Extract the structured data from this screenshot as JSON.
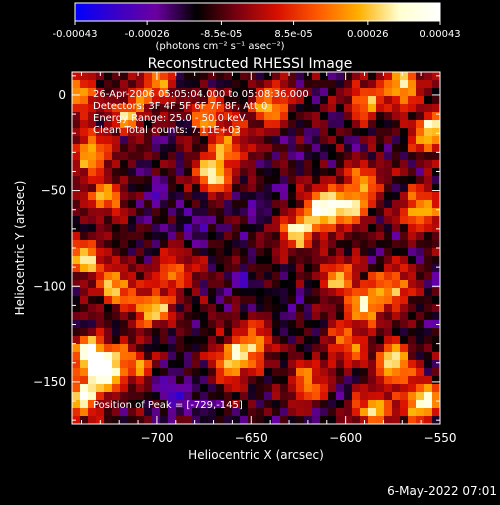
{
  "colorbar": {
    "tick_labels": [
      "-0.00043",
      "-0.00026",
      "-8.5e-05",
      "8.5e-05",
      "0.00026",
      "0.00043"
    ],
    "unit_label": "(photons cm⁻² s⁻¹ asec⁻²)",
    "colors": [
      "#0000ff",
      "#3a00c8",
      "#6a00a0",
      "#000000",
      "#7a0010",
      "#d81000",
      "#ff5a00",
      "#ffb000",
      "#ffffd0",
      "#ffffff"
    ]
  },
  "plot": {
    "title": "Reconstructed RHESSI Image",
    "annotations": [
      "26-Apr-2006 05:05:04.000 to 05:08:36.000",
      "Detectors: 3F 4F 5F 6F 7F 8F, Att 0",
      "Energy Range: 25.0 - 50.0 keV",
      "Clean    Total counts: 7.11E+03"
    ],
    "peak_label": "Position of Peak = [-729,-145]"
  },
  "footer": {
    "timestamp": "6-May-2022 07:01"
  },
  "chart_data": {
    "type": "heatmap",
    "title": "Reconstructed RHESSI Image",
    "xlabel": "Heliocentric X (arcsec)",
    "ylabel": "Heliocentric Y (arcsec)",
    "xlim": [
      -745,
      -550
    ],
    "ylim": [
      -172,
      12
    ],
    "xticks": [
      -700,
      -650,
      -600,
      -550
    ],
    "yticks": [
      0,
      -50,
      -100,
      -150
    ],
    "colorbar_range": [
      -0.00043,
      0.00043
    ],
    "peak": {
      "x": -729,
      "y": -145
    },
    "bright_regions": [
      {
        "x": -742,
        "y": 0,
        "v": 0.00025
      },
      {
        "x": -735,
        "y": -30,
        "v": 0.00028
      },
      {
        "x": -728,
        "y": -55,
        "v": 0.00022
      },
      {
        "x": -738,
        "y": -85,
        "v": 0.0003
      },
      {
        "x": -722,
        "y": -100,
        "v": 0.00026
      },
      {
        "x": -702,
        "y": -112,
        "v": 0.00032
      },
      {
        "x": -690,
        "y": -92,
        "v": 0.0002
      },
      {
        "x": -735,
        "y": -135,
        "v": 0.00038
      },
      {
        "x": -729,
        "y": -145,
        "v": 0.00043
      },
      {
        "x": -740,
        "y": -160,
        "v": 0.0003
      },
      {
        "x": -712,
        "y": -140,
        "v": 0.00018
      },
      {
        "x": -660,
        "y": -140,
        "v": 0.0003
      },
      {
        "x": -650,
        "y": -130,
        "v": 0.00022
      },
      {
        "x": -670,
        "y": -40,
        "v": 0.00034
      },
      {
        "x": -672,
        "y": -10,
        "v": 0.0002
      },
      {
        "x": -640,
        "y": -5,
        "v": 0.00025
      },
      {
        "x": -660,
        "y": -25,
        "v": 0.00015
      },
      {
        "x": -612,
        "y": -58,
        "v": 0.00036
      },
      {
        "x": -625,
        "y": -72,
        "v": 0.0003
      },
      {
        "x": -598,
        "y": -60,
        "v": 0.00028
      },
      {
        "x": -590,
        "y": -45,
        "v": 0.00018
      },
      {
        "x": -605,
        "y": -95,
        "v": 0.00022
      },
      {
        "x": -590,
        "y": -110,
        "v": 0.0003
      },
      {
        "x": -575,
        "y": -100,
        "v": 0.00026
      },
      {
        "x": -560,
        "y": -60,
        "v": 0.0003
      },
      {
        "x": -555,
        "y": -20,
        "v": 0.00034
      },
      {
        "x": -570,
        "y": 5,
        "v": 0.0003
      },
      {
        "x": -590,
        "y": -5,
        "v": 0.0002
      },
      {
        "x": -575,
        "y": -140,
        "v": 0.00034
      },
      {
        "x": -560,
        "y": -160,
        "v": 0.00038
      },
      {
        "x": -585,
        "y": -165,
        "v": 0.00026
      },
      {
        "x": -620,
        "y": -150,
        "v": 0.0002
      },
      {
        "x": -600,
        "y": -130,
        "v": 0.00016
      },
      {
        "x": -700,
        "y": 5,
        "v": 0.00018
      },
      {
        "x": -715,
        "y": -10,
        "v": 0.00022
      }
    ],
    "dark_regions": [
      {
        "x": -700,
        "y": -50,
        "v": -0.0002
      },
      {
        "x": -680,
        "y": -70,
        "v": -0.00025
      },
      {
        "x": -655,
        "y": -100,
        "v": -0.00022
      },
      {
        "x": -630,
        "y": -110,
        "v": -0.00018
      },
      {
        "x": -645,
        "y": -60,
        "v": -0.0002
      },
      {
        "x": -690,
        "y": -155,
        "v": -0.00028
      },
      {
        "x": -675,
        "y": -160,
        "v": -0.0002
      },
      {
        "x": -660,
        "y": -80,
        "v": -0.00015
      },
      {
        "x": -625,
        "y": -30,
        "v": -0.00016
      },
      {
        "x": -700,
        "y": -125,
        "v": -0.00018
      }
    ]
  }
}
